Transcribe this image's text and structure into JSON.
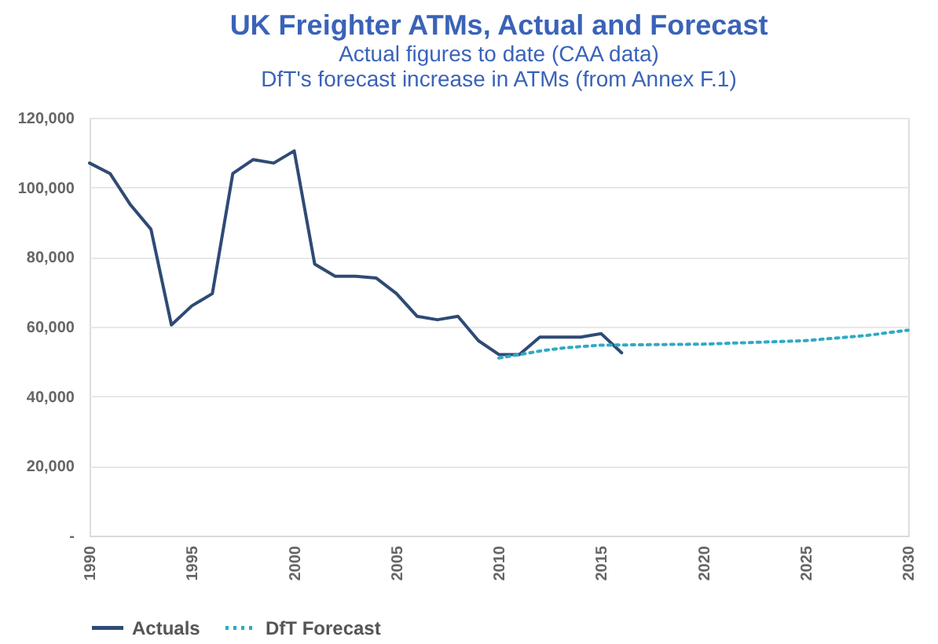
{
  "chart_data": {
    "type": "line",
    "title": "UK Freighter ATMs, Actual and Forecast",
    "subtitle": "Actual figures to date (CAA data)\nDfT's forecast increase in ATMs (from Annex F.1)",
    "xlim": [
      1990,
      2030
    ],
    "xticks": [
      1990,
      1995,
      2000,
      2005,
      2010,
      2015,
      2020,
      2025,
      2030
    ],
    "ylim": [
      0,
      120000
    ],
    "yticks": [
      {
        "value": 0,
        "label": "-"
      },
      {
        "value": 20000,
        "label": "20,000"
      },
      {
        "value": 40000,
        "label": "40,000"
      },
      {
        "value": 60000,
        "label": "60,000"
      },
      {
        "value": 80000,
        "label": "80,000"
      },
      {
        "value": 100000,
        "label": "100,000"
      },
      {
        "value": 120000,
        "label": "120,000"
      }
    ],
    "grid": "y",
    "legend": "bottom",
    "series": [
      {
        "name": "Actuals",
        "color": "#2f4a75",
        "line_style": "solid",
        "x": [
          1990,
          1991,
          1992,
          1993,
          1994,
          1995,
          1996,
          1997,
          1998,
          1999,
          2000,
          2001,
          2002,
          2003,
          2004,
          2005,
          2006,
          2007,
          2008,
          2009,
          2010,
          2011,
          2012,
          2013,
          2014,
          2015,
          2016
        ],
        "values": [
          107000,
          104000,
          95000,
          88000,
          60500,
          66000,
          69500,
          104000,
          108000,
          107000,
          110500,
          78000,
          74500,
          74500,
          74000,
          69500,
          63000,
          62000,
          63000,
          56000,
          52000,
          52000,
          57000,
          57000,
          57000,
          58000,
          52500
        ]
      },
      {
        "name": "DfT Forecast",
        "color": "#2eaac4",
        "line_style": "dotted",
        "x": [
          2010,
          2011,
          2012,
          2013,
          2014,
          2015,
          2020,
          2025,
          2028,
          2030
        ],
        "values": [
          51000,
          52000,
          53000,
          53800,
          54300,
          54700,
          55000,
          56000,
          57500,
          59000
        ]
      }
    ]
  }
}
